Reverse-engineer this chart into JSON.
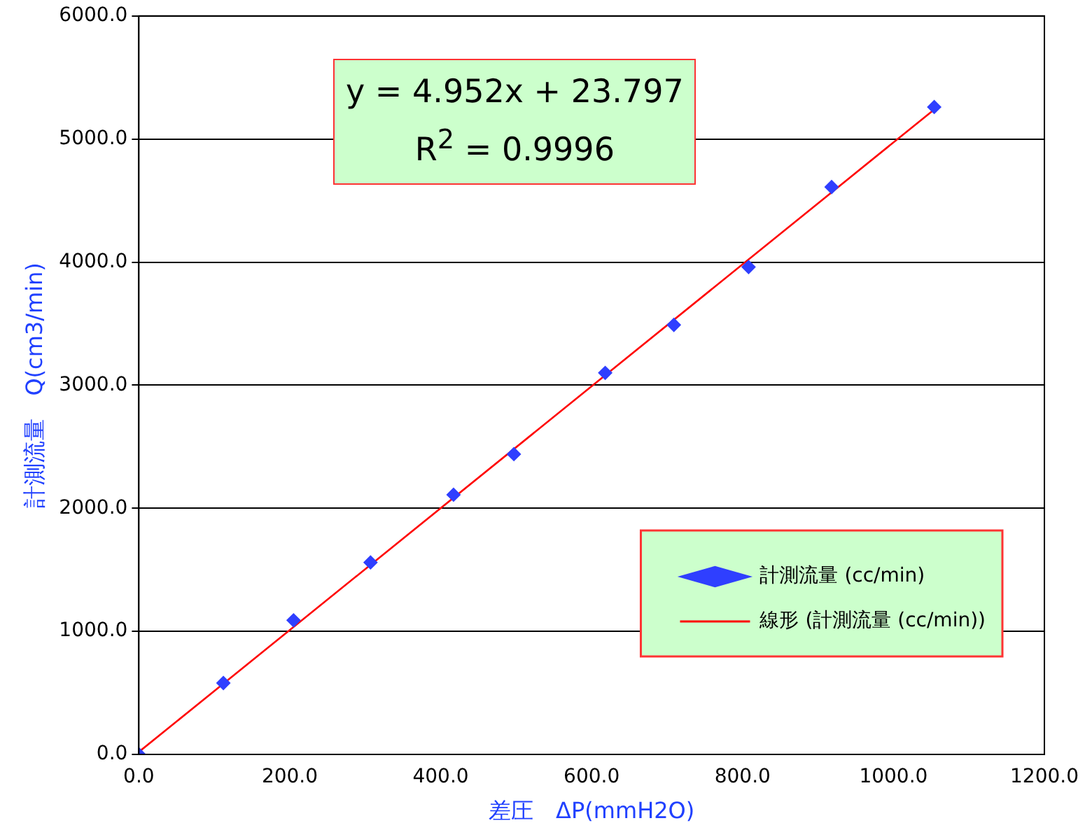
{
  "chart_data": {
    "type": "scatter",
    "xlabel": "差圧　ΔP(mmH2O)",
    "ylabel": "計測流量　Q(cm3/min)",
    "xlim": [
      0,
      1200
    ],
    "ylim": [
      0,
      6000
    ],
    "xticks": [
      {
        "value": 0,
        "label": "0.0"
      },
      {
        "value": 200,
        "label": "200.0"
      },
      {
        "value": 400,
        "label": "400.0"
      },
      {
        "value": 600,
        "label": "600.0"
      },
      {
        "value": 800,
        "label": "800.0"
      },
      {
        "value": 1000,
        "label": "1000.0"
      },
      {
        "value": 1200,
        "label": "1200.0"
      }
    ],
    "yticks": [
      {
        "value": 0,
        "label": "0.0"
      },
      {
        "value": 1000,
        "label": "1000.0"
      },
      {
        "value": 2000,
        "label": "2000.0"
      },
      {
        "value": 3000,
        "label": "3000.0"
      },
      {
        "value": 4000,
        "label": "4000.0"
      },
      {
        "value": 5000,
        "label": "5000.0"
      },
      {
        "value": 6000,
        "label": "6000.0"
      }
    ],
    "grid": "y",
    "legend": "bottom right",
    "annotations": [
      "y = 4.952x + 23.797",
      "R$^{2}$ = 0.9996"
    ],
    "series": [
      {
        "name": "計測流量 (cc/min)",
        "type": "scatter",
        "color": "#2f3fff",
        "marker": "diamond",
        "x": [
          0,
          112,
          205,
          307,
          417,
          497,
          618,
          709,
          808,
          918,
          1054
        ],
        "values": [
          0,
          580,
          1090,
          1560,
          2110,
          2440,
          3100,
          3490,
          3960,
          4610,
          5260
        ]
      },
      {
        "name": "線形 (計測流量 (cc/min))",
        "type": "line",
        "color": "#ff0000",
        "marker": "none",
        "x": [
          0,
          1054
        ],
        "values": [
          20,
          5240
        ]
      }
    ]
  }
}
